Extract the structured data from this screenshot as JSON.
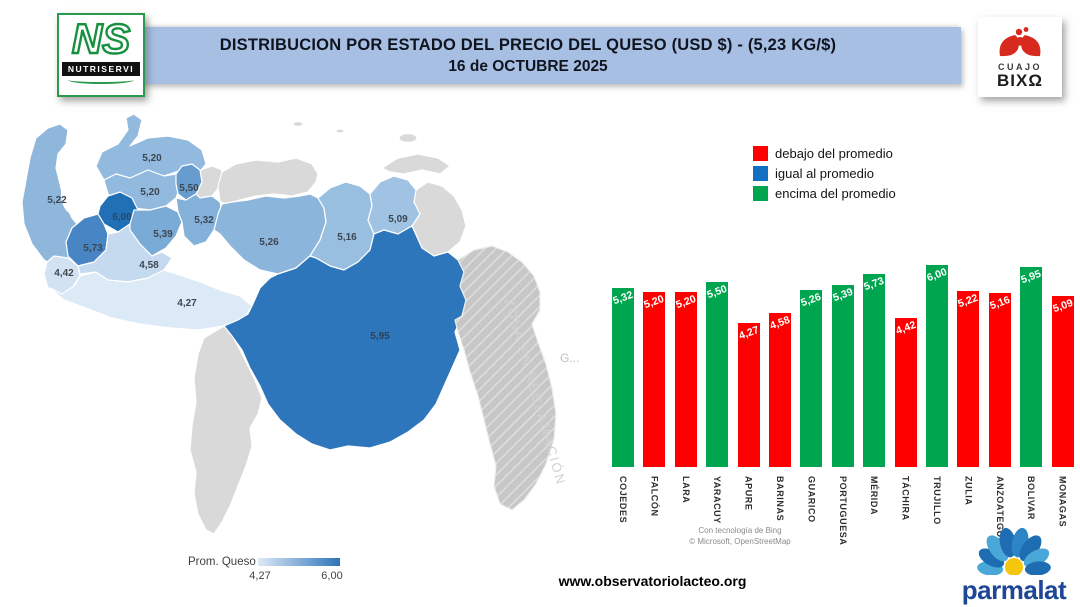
{
  "header": {
    "title_line1": "DISTRIBUCION POR ESTADO DEL PRECIO DEL QUESO (USD $)  - (5,23 KG/$)",
    "title_line2": "16 de OCTUBRE 2025"
  },
  "logos": {
    "nutriservi": {
      "monogram": "NS",
      "wordmark": "NUTRISERVI"
    },
    "cuajo_bixa": {
      "line1": "CUAJO",
      "line2": "BIXΩ"
    },
    "parmalat": {
      "wordmark": "parmalat"
    }
  },
  "price_legend": {
    "items": [
      {
        "label": "debajo del promedio",
        "color": "#FE0000"
      },
      {
        "label": "igual al promedio",
        "color": "#1170C1"
      },
      {
        "label": "encima del promedio",
        "color": "#00A550"
      }
    ]
  },
  "map": {
    "no_data_fill": "#D9D9D9",
    "reclamation_zone_label": "ZONA EN RECLAMACIÓN",
    "neighbor_label": "G...",
    "states": [
      {
        "name": "Zulia",
        "value_label": "5,22",
        "fill": "#8FB7DC"
      },
      {
        "name": "Falcón",
        "value_label": "5,20",
        "fill": "#92B9DE"
      },
      {
        "name": "Lara",
        "value_label": "5,20",
        "fill": "#92B9DE"
      },
      {
        "name": "Yaracuy",
        "value_label": "5,50",
        "fill": "#679CCF"
      },
      {
        "name": "Trujillo",
        "value_label": "6,00",
        "fill": "#2170B6"
      },
      {
        "name": "Mérida",
        "value_label": "5,73",
        "fill": "#4885C4"
      },
      {
        "name": "Táchira",
        "value_label": "4,42",
        "fill": "#D2E2F2"
      },
      {
        "name": "Barinas",
        "value_label": "4,58",
        "fill": "#C5DAEE"
      },
      {
        "name": "Portuguesa",
        "value_label": "5,39",
        "fill": "#7AAAD6"
      },
      {
        "name": "Cojedes",
        "value_label": "5,32",
        "fill": "#84B1DA"
      },
      {
        "name": "Apure",
        "value_label": "4,27",
        "fill": "#DCE9F6"
      },
      {
        "name": "Guárico",
        "value_label": "5,26",
        "fill": "#8CB5DB"
      },
      {
        "name": "Anzoátegui",
        "value_label": "5,16",
        "fill": "#98BEE0"
      },
      {
        "name": "Monagas",
        "value_label": "5,09",
        "fill": "#A0C3E3"
      },
      {
        "name": "Bolívar",
        "value_label": "5,95",
        "fill": "#2E76BB"
      }
    ],
    "gradient_legend": {
      "title": "Prom. Queso",
      "min_label": "4,27",
      "max_label": "6,00",
      "min_color": "#DCE9F6",
      "max_color": "#2E74BA"
    }
  },
  "chart_data": {
    "type": "bar",
    "title": "",
    "xlabel": "",
    "ylabel": "",
    "ylim": [
      0,
      6.2
    ],
    "average_reference": 5.23,
    "status_colors": {
      "below": "#FE0000",
      "above": "#00A550"
    },
    "categories": [
      "COJEDES",
      "FALCÓN",
      "LARA",
      "YARACUY",
      "APURE",
      "BARINAS",
      "GUARICO",
      "PORTUGUESA",
      "MÉRIDA",
      "TÁCHIRA",
      "TRUJILLO",
      "ZULIA",
      "ANZOATEGUI",
      "BOLIVAR",
      "MONAGAS"
    ],
    "values": [
      5.32,
      5.2,
      5.2,
      5.5,
      4.27,
      4.58,
      5.26,
      5.39,
      5.73,
      4.42,
      6.0,
      5.22,
      5.16,
      5.95,
      5.09
    ],
    "value_labels": [
      "5,32",
      "5,20",
      "5,20",
      "5,50",
      "4,27",
      "4,58",
      "5,26",
      "5,39",
      "5,73",
      "4,42",
      "6,00",
      "5,22",
      "5,16",
      "5,95",
      "5,09"
    ],
    "statuses": [
      "above",
      "below",
      "below",
      "above",
      "below",
      "below",
      "above",
      "above",
      "above",
      "below",
      "above",
      "below",
      "below",
      "above",
      "below"
    ],
    "attribution_line1": "Con tecnología de Bing",
    "attribution_line2": "© Microsoft, OpenStreetMap"
  },
  "footer": {
    "website": "www.observatoriolacteo.org"
  }
}
